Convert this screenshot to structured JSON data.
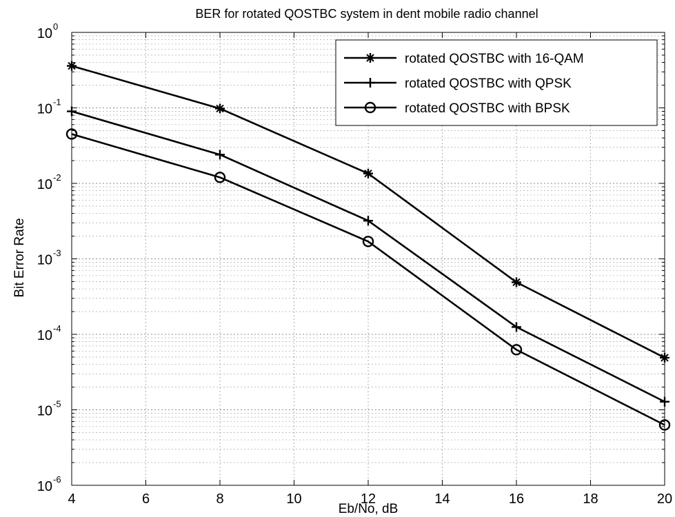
{
  "chart_data": {
    "type": "line",
    "title": "BER for rotated QOSTBC system in dent mobile radio channel",
    "xlabel": "Eb/No, dB",
    "ylabel": "Bit Error Rate",
    "xlim": [
      4,
      20
    ],
    "ylim": [
      1e-06,
      1
    ],
    "yscale": "log",
    "grid": true,
    "legend_position": "top-right",
    "x_ticks": [
      "4",
      "6",
      "8",
      "10",
      "12",
      "14",
      "16",
      "18",
      "20"
    ],
    "y_ticks": [
      {
        "base": "10",
        "exp": "0"
      },
      {
        "base": "10",
        "exp": "-1"
      },
      {
        "base": "10",
        "exp": "-2"
      },
      {
        "base": "10",
        "exp": "-3"
      },
      {
        "base": "10",
        "exp": "-4"
      },
      {
        "base": "10",
        "exp": "-5"
      },
      {
        "base": "10",
        "exp": "-6"
      }
    ],
    "x": [
      4,
      8,
      12,
      16,
      20
    ],
    "series": [
      {
        "name": "rotated QOSTBC with 16-QAM",
        "marker": "plus-with-cross",
        "color": "#000000",
        "values": [
          0.36,
          0.098,
          0.0135,
          0.00049,
          4.9e-05
        ]
      },
      {
        "name": "rotated QOSTBC with QPSK",
        "marker": "plus",
        "color": "#000000",
        "values": [
          0.09,
          0.024,
          0.0032,
          0.000125,
          1.28e-05
        ]
      },
      {
        "name": "rotated QOSTBC with BPSK",
        "marker": "circle",
        "color": "#000000",
        "values": [
          0.045,
          0.012,
          0.0017,
          6.25e-05,
          6.3e-06
        ]
      }
    ]
  }
}
